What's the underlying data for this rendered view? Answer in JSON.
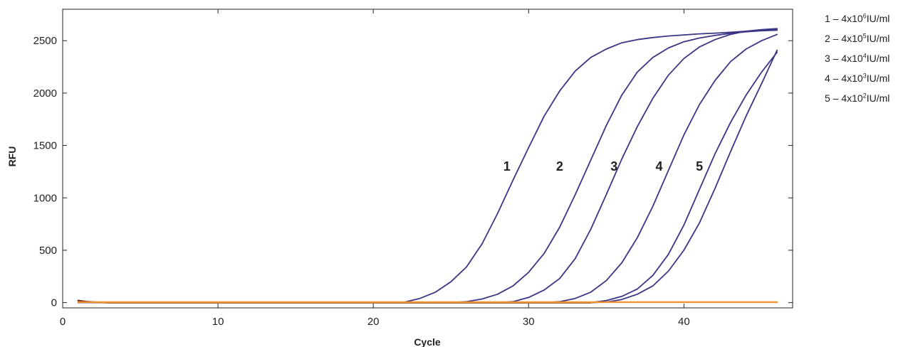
{
  "chart_data": {
    "type": "line",
    "xlabel": "Cycle",
    "ylabel": "RFU",
    "xlim": [
      0,
      47
    ],
    "ylim": [
      -50,
      2800
    ],
    "xticks": [
      0,
      10,
      20,
      30,
      40
    ],
    "yticks": [
      0,
      500,
      1000,
      1500,
      2000,
      2500
    ],
    "grid": false,
    "legend_position": "top-right-outside",
    "legend": [
      {
        "prefix": "1 – 4x10",
        "exp": "6",
        "suffix": "IU/ml"
      },
      {
        "prefix": "2 – 4x10",
        "exp": "5",
        "suffix": "IU/ml"
      },
      {
        "prefix": "3 – 4x10",
        "exp": "4",
        "suffix": "IU/ml"
      },
      {
        "prefix": "4 – 4x10",
        "exp": "3",
        "suffix": "IU/ml"
      },
      {
        "prefix": "5 – 4x10",
        "exp": "2",
        "suffix": "IU/ml"
      }
    ],
    "annotations": [
      {
        "text": "1",
        "x": 28.6,
        "y": 1300
      },
      {
        "text": "2",
        "x": 32.0,
        "y": 1300
      },
      {
        "text": "3",
        "x": 35.5,
        "y": 1300
      },
      {
        "text": "4",
        "x": 38.4,
        "y": 1300
      },
      {
        "text": "5",
        "x": 41.0,
        "y": 1300
      }
    ],
    "series_style": {
      "sample_color": "#3b3585",
      "negative_color": "#f0912a",
      "negative_dark": "#7a2b1a"
    },
    "series": [
      {
        "name": "1",
        "color": "#3b3585",
        "x": [
          1,
          4,
          8,
          12,
          16,
          20,
          21,
          22,
          23,
          24,
          25,
          26,
          27,
          28,
          29,
          30,
          31,
          32,
          33,
          34,
          35,
          36,
          37,
          38,
          39,
          40,
          41,
          42,
          43,
          44,
          45,
          46
        ],
        "y": [
          0,
          0,
          0,
          0,
          0,
          0,
          0,
          5,
          40,
          100,
          200,
          340,
          560,
          850,
          1170,
          1480,
          1780,
          2020,
          2210,
          2340,
          2420,
          2480,
          2510,
          2530,
          2545,
          2555,
          2565,
          2572,
          2580,
          2590,
          2600,
          2610
        ]
      },
      {
        "name": "2",
        "color": "#3b3585",
        "x": [
          1,
          4,
          8,
          12,
          16,
          20,
          24,
          25,
          26,
          27,
          28,
          29,
          30,
          31,
          32,
          33,
          34,
          35,
          36,
          37,
          38,
          39,
          40,
          41,
          42,
          43,
          44,
          45,
          46
        ],
        "y": [
          0,
          0,
          0,
          0,
          0,
          0,
          0,
          0,
          10,
          35,
          80,
          160,
          290,
          470,
          720,
          1030,
          1360,
          1690,
          1980,
          2200,
          2340,
          2430,
          2490,
          2525,
          2550,
          2570,
          2585,
          2595,
          2600
        ]
      },
      {
        "name": "3",
        "color": "#3b3585",
        "x": [
          1,
          4,
          8,
          12,
          16,
          20,
          24,
          28,
          29,
          30,
          31,
          32,
          33,
          34,
          35,
          36,
          37,
          38,
          39,
          40,
          41,
          42,
          43,
          44,
          45,
          46
        ],
        "y": [
          0,
          0,
          0,
          0,
          0,
          0,
          0,
          0,
          10,
          50,
          120,
          230,
          420,
          700,
          1030,
          1370,
          1680,
          1950,
          2170,
          2330,
          2440,
          2510,
          2560,
          2590,
          2605,
          2615
        ]
      },
      {
        "name": "4",
        "color": "#3b3585",
        "x": [
          1,
          4,
          8,
          12,
          16,
          20,
          24,
          28,
          31,
          32,
          33,
          34,
          35,
          36,
          37,
          38,
          39,
          40,
          41,
          42,
          43,
          44,
          45,
          46
        ],
        "y": [
          0,
          0,
          0,
          0,
          0,
          0,
          0,
          0,
          0,
          10,
          40,
          100,
          210,
          380,
          620,
          920,
          1260,
          1600,
          1890,
          2120,
          2300,
          2420,
          2500,
          2560
        ]
      },
      {
        "name": "5a",
        "color": "#3b3585",
        "x": [
          1,
          4,
          8,
          12,
          16,
          20,
          24,
          28,
          32,
          34,
          35,
          36,
          37,
          38,
          39,
          40,
          41,
          42,
          43,
          44,
          45,
          46
        ],
        "y": [
          0,
          0,
          0,
          0,
          0,
          0,
          0,
          0,
          0,
          0,
          20,
          60,
          130,
          260,
          460,
          740,
          1080,
          1420,
          1720,
          1980,
          2200,
          2390
        ]
      },
      {
        "name": "5b",
        "color": "#3b3585",
        "x": [
          1,
          4,
          8,
          12,
          16,
          20,
          24,
          28,
          32,
          34,
          35,
          36,
          37,
          38,
          39,
          40,
          41,
          42,
          43,
          44,
          45,
          46
        ],
        "y": [
          0,
          0,
          0,
          0,
          0,
          0,
          0,
          0,
          0,
          0,
          5,
          30,
          80,
          160,
          300,
          500,
          760,
          1090,
          1440,
          1780,
          2090,
          2410
        ]
      },
      {
        "name": "negative-dark",
        "color": "#7a2b1a",
        "x": [
          1,
          1.5,
          2,
          3,
          5,
          8,
          12,
          16,
          20,
          24,
          28,
          32,
          34
        ],
        "y": [
          20,
          10,
          5,
          0,
          0,
          0,
          0,
          0,
          0,
          0,
          0,
          0,
          0
        ]
      },
      {
        "name": "negative",
        "color": "#f0912a",
        "x": [
          1,
          10,
          20,
          30,
          40,
          46
        ],
        "y": [
          5,
          5,
          5,
          5,
          5,
          5
        ]
      }
    ]
  }
}
